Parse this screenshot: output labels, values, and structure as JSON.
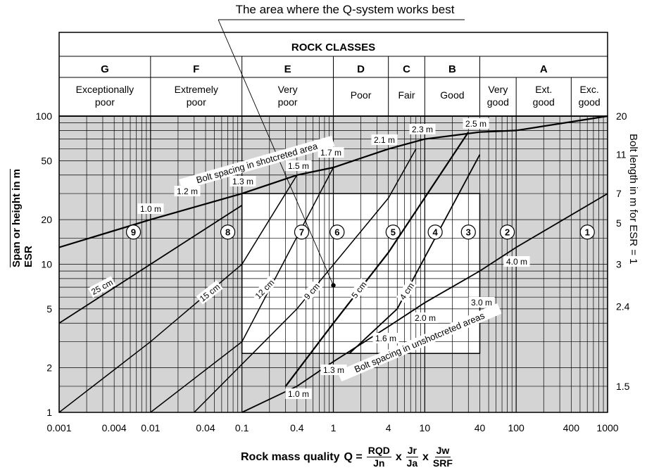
{
  "top_callout": "The area where the Q-system works best",
  "header": {
    "title": "ROCK CLASSES",
    "classes": [
      {
        "letter": "G",
        "desc": [
          "Exceptionally",
          "poor"
        ]
      },
      {
        "letter": "F",
        "desc": [
          "Extremely",
          "poor"
        ]
      },
      {
        "letter": "E",
        "desc": [
          "Very",
          "poor"
        ]
      },
      {
        "letter": "D",
        "desc": [
          "Poor"
        ]
      },
      {
        "letter": "C",
        "desc": [
          "Fair"
        ]
      },
      {
        "letter": "B",
        "desc": [
          "Good"
        ]
      },
      {
        "letter": "A",
        "desc": [
          "Very",
          "good"
        ],
        "sub": [
          [
            "Very",
            "good"
          ],
          [
            "Ext.",
            "good"
          ],
          [
            "Exc.",
            "good"
          ]
        ]
      }
    ]
  },
  "axes": {
    "x_ticks": [
      "0.001",
      "0.004",
      "0.01",
      "0.04",
      "0.1",
      "0.4",
      "1",
      "4",
      "10",
      "40",
      "100",
      "400",
      "1000"
    ],
    "y_left_ticks": [
      "1",
      "2",
      "5",
      "10",
      "20",
      "50",
      "100"
    ],
    "y_right_ticks": [
      "1.5",
      "2.4",
      "3",
      "5",
      "7",
      "11",
      "20"
    ],
    "y_left_label_num": "Span or height in m",
    "y_left_label_den": "ESR",
    "y_right_label": "Bolt length in m for ESR = 1",
    "x_label_prefix": "Rock mass quality",
    "x_label_q": "Q =",
    "frac1": {
      "num": "RQD",
      "den": "Jn"
    },
    "frac2": {
      "num": "Jr",
      "den": "Ja"
    },
    "frac3": {
      "num": "Jw",
      "den": "SRF"
    },
    "times": "x"
  },
  "curve_labels": {
    "shotcrete_area": "Bolt spacing in shotcreted area",
    "unshotcrete_area": "Bolt spacing in unshotcreted areas",
    "thickness": [
      "25 cm",
      "15 cm",
      "12 cm",
      "9 cm",
      "5 cm",
      "4 cm"
    ],
    "spacing_upper": [
      "1.0 m",
      "1.2 m",
      "1.3 m",
      "1.5 m",
      "1.7 m",
      "2.1 m",
      "2.3 m",
      "2.5 m"
    ],
    "spacing_lower": [
      "1.0 m",
      "1.3 m",
      "1.6 m",
      "2.0 m",
      "3.0 m",
      "4.0 m"
    ]
  },
  "zones": [
    "9",
    "8",
    "7",
    "6",
    "5",
    "4",
    "3",
    "2",
    "1"
  ],
  "chart_data": {
    "type": "line",
    "x_scale": "log",
    "y_scale": "log",
    "xlim": [
      0.001,
      1000
    ],
    "ylim": [
      1,
      100
    ],
    "series": [
      {
        "name": "Bolt spacing in shotcreted area",
        "x": [
          0.001,
          0.01,
          0.1,
          0.4,
          1,
          4,
          10,
          40,
          100,
          1000
        ],
        "y": [
          13,
          20,
          30,
          40,
          45,
          60,
          70,
          78,
          80,
          100
        ]
      },
      {
        "name": "25 cm",
        "x": [
          0.001,
          0.01,
          0.1
        ],
        "y": [
          4,
          10,
          25
        ]
      },
      {
        "name": "15 cm",
        "x": [
          0.001,
          0.01,
          0.1,
          0.4
        ],
        "y": [
          1,
          3,
          10,
          40
        ]
      },
      {
        "name": "12 cm",
        "x": [
          0.01,
          0.1,
          1
        ],
        "y": [
          1,
          3,
          45
        ]
      },
      {
        "name": "9 cm",
        "x": [
          0.03,
          0.4,
          4,
          8
        ],
        "y": [
          1,
          5,
          28,
          60
        ]
      },
      {
        "name": "5 cm",
        "x": [
          0.3,
          1,
          4,
          30
        ],
        "y": [
          1.5,
          4,
          12,
          78
        ]
      },
      {
        "name": "4 cm",
        "x": [
          1.5,
          5,
          40
        ],
        "y": [
          2.5,
          5,
          55
        ]
      },
      {
        "name": "Bolt spacing in unshotcreted areas",
        "x": [
          0.1,
          0.4,
          1,
          4,
          10,
          40,
          100,
          1000
        ],
        "y": [
          1,
          1.5,
          2.2,
          3.8,
          5.5,
          9,
          13,
          30
        ]
      }
    ],
    "dot": {
      "x": 1.0,
      "y": 7.2
    }
  }
}
